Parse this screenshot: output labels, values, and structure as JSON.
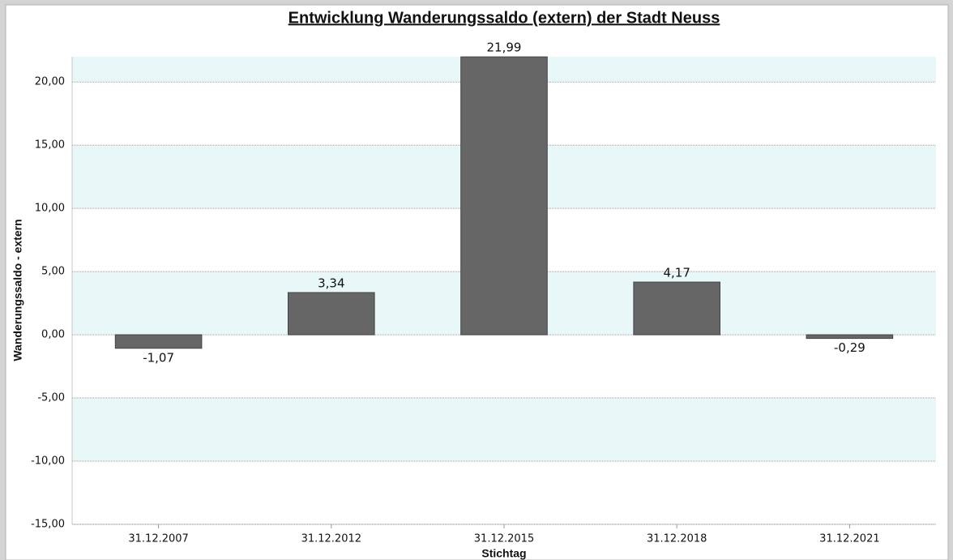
{
  "chart_data": {
    "type": "bar",
    "title": "Entwicklung Wanderungssaldo (extern) der Stadt Neuss",
    "xlabel": "Stichtag",
    "ylabel": "Wanderungssaldo  - extern",
    "categories": [
      "31.12.2007",
      "31.12.2012",
      "31.12.2015",
      "31.12.2018",
      "31.12.2021"
    ],
    "values": [
      -1.07,
      3.34,
      21.99,
      4.17,
      -0.29
    ],
    "value_labels": [
      "-1,07",
      "3,34",
      "21,99",
      "4,17",
      "-0,29"
    ],
    "color": "#666666",
    "ylim": [
      -15,
      22
    ],
    "yticks": [
      {
        "value": -15,
        "label": "-15,00"
      },
      {
        "value": -10,
        "label": "-10,00"
      },
      {
        "value": -5,
        "label": "-5,00"
      },
      {
        "value": 0,
        "label": "0,00"
      },
      {
        "value": 5,
        "label": "5,00"
      },
      {
        "value": 10,
        "label": "10,00"
      },
      {
        "value": 15,
        "label": "15,00"
      },
      {
        "value": 20,
        "label": "20,00"
      }
    ],
    "grid": true
  }
}
